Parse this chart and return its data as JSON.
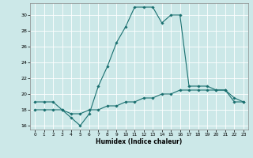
{
  "xlabel": "Humidex (Indice chaleur)",
  "bg_color": "#cce8e8",
  "grid_color": "#ffffff",
  "line_color": "#1a7070",
  "xlim": [
    -0.5,
    23.5
  ],
  "ylim": [
    15.5,
    31.5
  ],
  "xticks": [
    0,
    1,
    2,
    3,
    4,
    5,
    6,
    7,
    8,
    9,
    10,
    11,
    12,
    13,
    14,
    15,
    16,
    17,
    18,
    19,
    20,
    21,
    22,
    23
  ],
  "yticks": [
    16,
    18,
    20,
    22,
    24,
    26,
    28,
    30
  ],
  "line1_x": [
    0,
    1,
    2,
    3,
    4,
    5,
    6,
    7,
    8,
    9,
    10,
    11,
    12,
    13,
    14,
    15,
    16,
    17,
    18,
    19,
    20,
    21,
    22,
    23
  ],
  "line1_y": [
    19,
    19,
    19,
    18,
    17,
    16,
    17.5,
    21,
    23.5,
    26.5,
    28.5,
    31,
    31,
    31,
    29,
    30,
    30,
    21,
    21,
    21,
    20.5,
    20.5,
    19.5,
    19
  ],
  "line2_x": [
    0,
    1,
    2,
    3,
    4,
    5,
    6,
    7,
    8,
    9,
    10,
    11,
    12,
    13,
    14,
    15,
    16,
    17,
    18,
    19,
    20,
    21,
    22,
    23
  ],
  "line2_y": [
    18,
    18,
    18,
    18,
    17.5,
    17.5,
    18,
    18,
    18.5,
    18.5,
    19,
    19,
    19.5,
    19.5,
    20,
    20,
    20.5,
    20.5,
    20.5,
    20.5,
    20.5,
    20.5,
    19,
    19
  ]
}
